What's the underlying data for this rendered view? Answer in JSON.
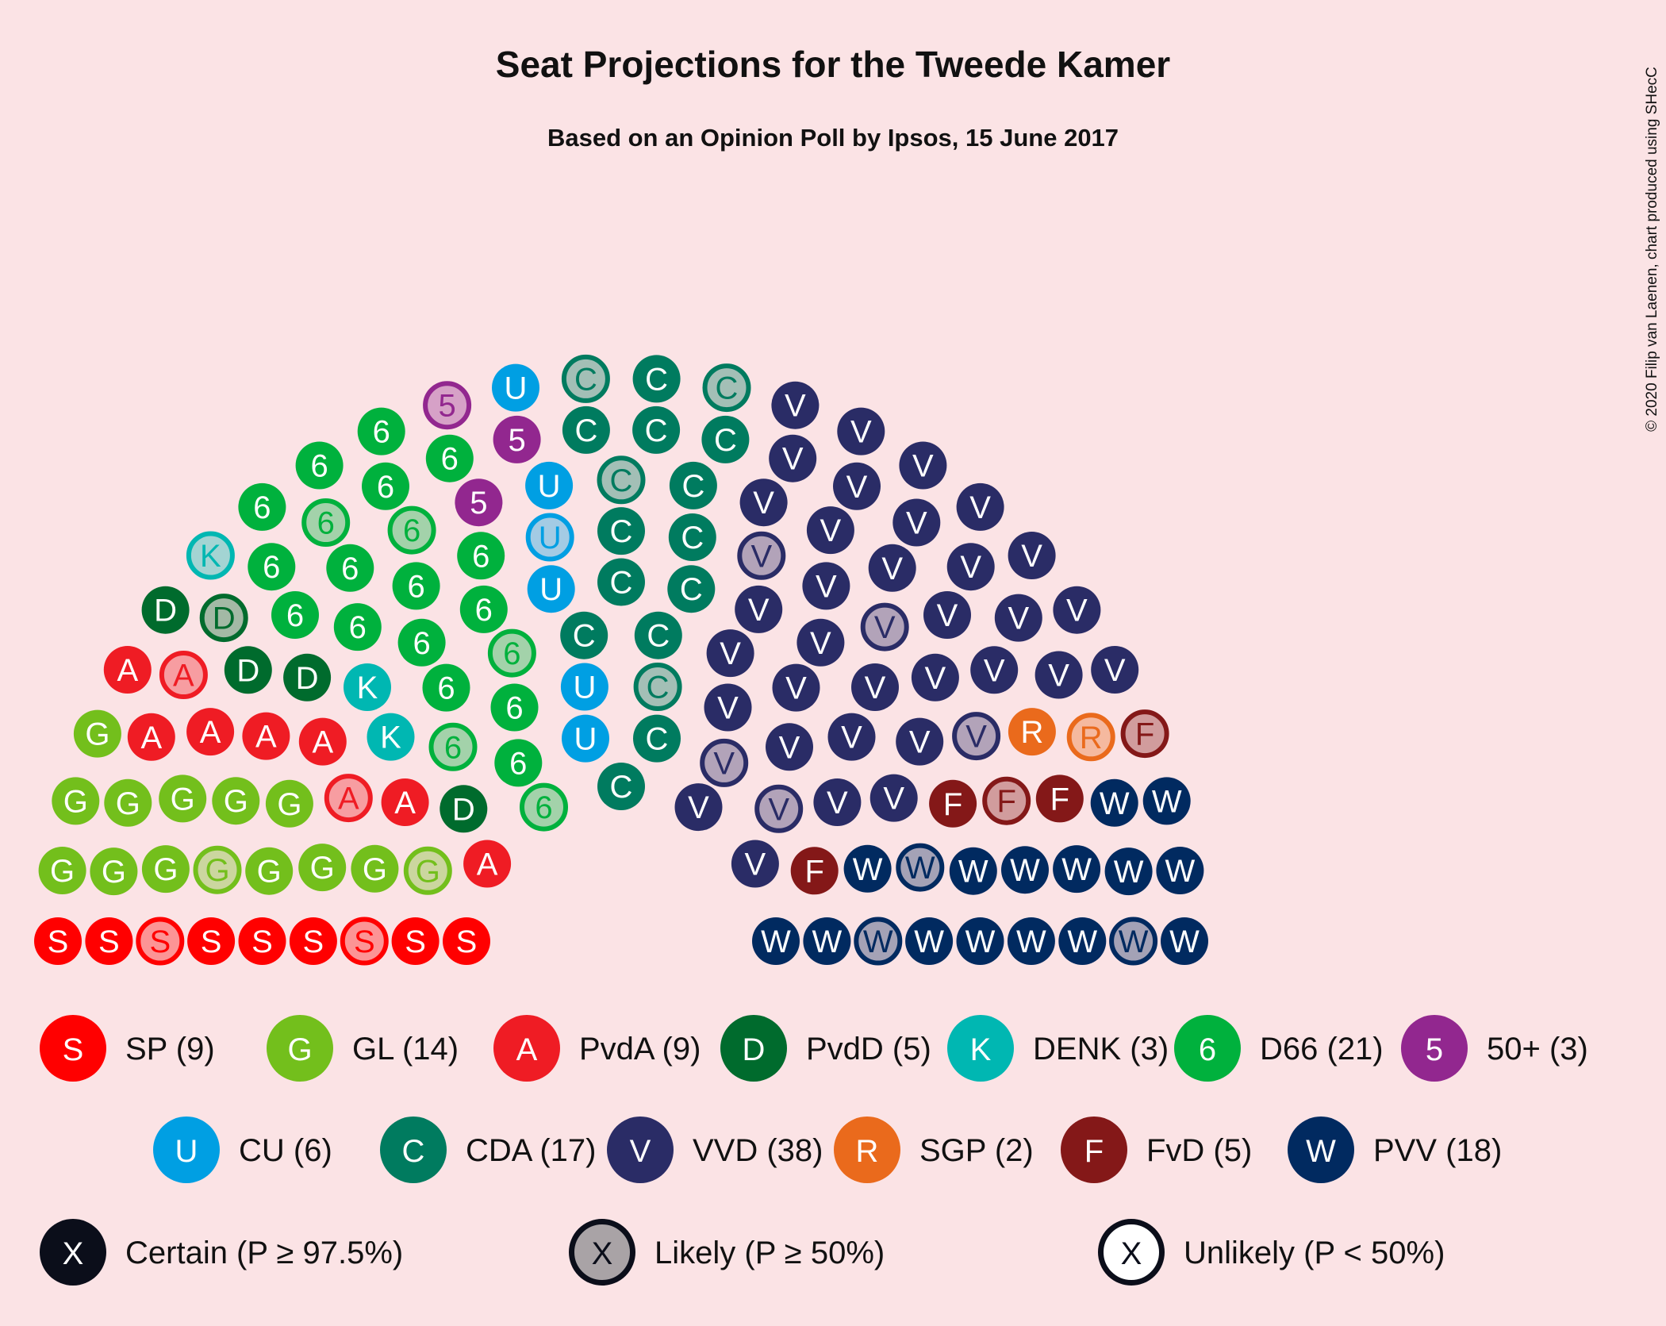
{
  "chart_data": {
    "type": "parliament",
    "title": "Seat Projections for the Tweede Kamer",
    "subtitle": "Based on an Opinion Poll by Ipsos, 15 June 2017",
    "credit": "© 2020 Filip van Laenen, chart produced using SHecC",
    "total_seats": 150,
    "parties": [
      {
        "abbr": "SP",
        "letter": "S",
        "seats": 9,
        "color": "#FF0000",
        "certain": 7,
        "likely": 2,
        "label": "SP (9)"
      },
      {
        "abbr": "GL",
        "letter": "G",
        "seats": 14,
        "color": "#73BF1C",
        "certain": 12,
        "likely": 2,
        "label": "GL (14)"
      },
      {
        "abbr": "PvdA",
        "letter": "A",
        "seats": 9,
        "color": "#EF1C24",
        "certain": 7,
        "likely": 2,
        "label": "PvdA (9)"
      },
      {
        "abbr": "PvdD",
        "letter": "D",
        "seats": 5,
        "color": "#006B2D",
        "certain": 4,
        "likely": 1,
        "label": "PvdD (5)"
      },
      {
        "abbr": "DENK",
        "letter": "K",
        "seats": 3,
        "color": "#00B7B2",
        "certain": 2,
        "likely": 1,
        "label": "DENK (3)"
      },
      {
        "abbr": "D66",
        "letter": "6",
        "seats": 21,
        "color": "#00B13D",
        "certain": 16,
        "likely": 5,
        "label": "D66 (21)"
      },
      {
        "abbr": "50+",
        "letter": "5",
        "seats": 3,
        "color": "#92278F",
        "certain": 2,
        "likely": 1,
        "label": "50+ (3)"
      },
      {
        "abbr": "CU",
        "letter": "U",
        "seats": 6,
        "color": "#009FE3",
        "certain": 5,
        "likely": 1,
        "label": "CU (6)"
      },
      {
        "abbr": "CDA",
        "letter": "C",
        "seats": 17,
        "color": "#007B5F",
        "certain": 13,
        "likely": 4,
        "label": "CDA (17)"
      },
      {
        "abbr": "VVD",
        "letter": "V",
        "seats": 38,
        "color": "#2A2C66",
        "certain": 33,
        "likely": 5,
        "label": "VVD (38)"
      },
      {
        "abbr": "SGP",
        "letter": "R",
        "seats": 2,
        "color": "#EA6A1C",
        "certain": 1,
        "likely": 1,
        "label": "SGP (2)"
      },
      {
        "abbr": "FvD",
        "letter": "F",
        "seats": 5,
        "color": "#841818",
        "certain": 3,
        "likely": 2,
        "label": "FvD (5)"
      },
      {
        "abbr": "PVV",
        "letter": "W",
        "seats": 18,
        "color": "#012A60",
        "certain": 15,
        "likely": 3,
        "label": "PVV (18)"
      }
    ],
    "certainty_legend": [
      {
        "symbol": "X",
        "label": "Certain (P ≥ 97.5%)",
        "style": "certain"
      },
      {
        "symbol": "X",
        "label": "Likely (P ≥ 50%)",
        "style": "likely"
      },
      {
        "symbol": "X",
        "label": "Unlikely (P < 50%)",
        "style": "unlikely"
      }
    ]
  }
}
